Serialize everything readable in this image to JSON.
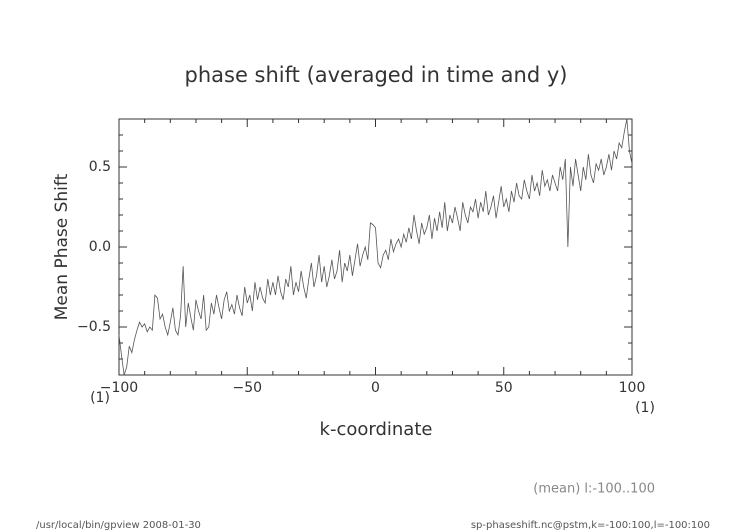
{
  "chart_data": {
    "type": "line",
    "title": "phase shift (averaged in time and y)",
    "x_label": "k-coordinate",
    "y_label": "Mean Phase Shift",
    "x_unit": "(1)",
    "y_unit": "(1)",
    "annotation": "(mean) l:-100..100",
    "footer_left": "/usr/local/bin/gpview  2008-01-30",
    "footer_right": "sp-phaseshift.nc@pstm,k=-100:100,l=-100:100",
    "xlim": [
      -100,
      100
    ],
    "ylim": [
      -0.8,
      0.8
    ],
    "xticks": [
      {
        "value": -100,
        "label": "−100"
      },
      {
        "value": -50,
        "label": "−50"
      },
      0,
      50,
      100
    ],
    "yticks": [
      {
        "value": -0.5,
        "label": "−0.5"
      },
      {
        "value": 0,
        "label": "0.0"
      },
      0.5
    ],
    "x_minor_ticks": [
      -90,
      -80,
      -70,
      -60,
      -40,
      -30,
      -20,
      -10,
      10,
      20,
      30,
      40,
      60,
      70,
      80,
      90
    ],
    "y_minor_ticks": [
      -0.7,
      -0.6,
      -0.4,
      -0.3,
      -0.2,
      -0.1,
      0.1,
      0.2,
      0.3,
      0.4,
      0.6,
      0.7
    ],
    "x": [
      -100,
      -99,
      -98,
      -97,
      -96,
      -95,
      -94,
      -93,
      -92,
      -91,
      -90,
      -89,
      -88,
      -87,
      -86,
      -85,
      -84,
      -83,
      -82,
      -81,
      -80,
      -79,
      -78,
      -77,
      -76,
      -75,
      -74,
      -73,
      -72,
      -71,
      -70,
      -69,
      -68,
      -67,
      -66,
      -65,
      -64,
      -63,
      -62,
      -61,
      -60,
      -59,
      -58,
      -57,
      -56,
      -55,
      -54,
      -53,
      -52,
      -51,
      -50,
      -49,
      -48,
      -47,
      -46,
      -45,
      -44,
      -43,
      -42,
      -41,
      -40,
      -39,
      -38,
      -37,
      -36,
      -35,
      -34,
      -33,
      -32,
      -31,
      -30,
      -29,
      -28,
      -27,
      -26,
      -25,
      -24,
      -23,
      -22,
      -21,
      -20,
      -19,
      -18,
      -17,
      -16,
      -15,
      -14,
      -13,
      -12,
      -11,
      -10,
      -9,
      -8,
      -7,
      -6,
      -5,
      -4,
      -3,
      -2,
      -1,
      0,
      1,
      2,
      3,
      4,
      5,
      6,
      7,
      8,
      9,
      10,
      11,
      12,
      13,
      14,
      15,
      16,
      17,
      18,
      19,
      20,
      21,
      22,
      23,
      24,
      25,
      26,
      27,
      28,
      29,
      30,
      31,
      32,
      33,
      34,
      35,
      36,
      37,
      38,
      39,
      40,
      41,
      42,
      43,
      44,
      45,
      46,
      47,
      48,
      49,
      50,
      51,
      52,
      53,
      54,
      55,
      56,
      57,
      58,
      59,
      60,
      61,
      62,
      63,
      64,
      65,
      66,
      67,
      68,
      69,
      70,
      71,
      72,
      73,
      74,
      75,
      76,
      77,
      78,
      79,
      80,
      81,
      82,
      83,
      84,
      85,
      86,
      87,
      88,
      89,
      90,
      91,
      92,
      93,
      94,
      95,
      96,
      97,
      98,
      99,
      100
    ],
    "series": [
      {
        "color": "#555555",
        "values": [
          -0.55,
          -0.68,
          -0.8,
          -0.75,
          -0.62,
          -0.66,
          -0.58,
          -0.52,
          -0.47,
          -0.5,
          -0.48,
          -0.53,
          -0.5,
          -0.52,
          -0.3,
          -0.32,
          -0.45,
          -0.42,
          -0.5,
          -0.55,
          -0.47,
          -0.38,
          -0.52,
          -0.55,
          -0.43,
          -0.12,
          -0.5,
          -0.35,
          -0.44,
          -0.52,
          -0.33,
          -0.4,
          -0.45,
          -0.3,
          -0.52,
          -0.5,
          -0.35,
          -0.42,
          -0.3,
          -0.38,
          -0.45,
          -0.33,
          -0.28,
          -0.4,
          -0.36,
          -0.42,
          -0.3,
          -0.38,
          -0.43,
          -0.25,
          -0.35,
          -0.3,
          -0.4,
          -0.22,
          -0.33,
          -0.25,
          -0.32,
          -0.35,
          -0.2,
          -0.3,
          -0.22,
          -0.3,
          -0.18,
          -0.28,
          -0.33,
          -0.2,
          -0.25,
          -0.12,
          -0.3,
          -0.22,
          -0.28,
          -0.15,
          -0.25,
          -0.32,
          -0.2,
          -0.1,
          -0.25,
          -0.18,
          -0.05,
          -0.22,
          -0.12,
          -0.25,
          -0.18,
          -0.08,
          -0.2,
          -0.15,
          -0.02,
          -0.22,
          -0.1,
          -0.15,
          -0.05,
          -0.18,
          -0.08,
          0.02,
          -0.12,
          -0.05,
          0.0,
          -0.08,
          0.15,
          0.14,
          0.12,
          -0.1,
          -0.13,
          -0.05,
          -0.02,
          -0.08,
          0.05,
          -0.03,
          0.02,
          0.05,
          0.0,
          0.08,
          0.03,
          0.12,
          0.05,
          0.2,
          0.1,
          0.02,
          0.15,
          0.08,
          0.12,
          0.2,
          0.05,
          0.18,
          0.1,
          0.22,
          0.12,
          0.28,
          0.1,
          0.2,
          0.15,
          0.25,
          0.18,
          0.1,
          0.28,
          0.2,
          0.15,
          0.25,
          0.22,
          0.3,
          0.18,
          0.28,
          0.22,
          0.35,
          0.2,
          0.25,
          0.32,
          0.18,
          0.28,
          0.38,
          0.25,
          0.3,
          0.22,
          0.35,
          0.28,
          0.4,
          0.32,
          0.3,
          0.42,
          0.35,
          0.3,
          0.45,
          0.35,
          0.4,
          0.32,
          0.48,
          0.38,
          0.42,
          0.35,
          0.45,
          0.4,
          0.35,
          0.5,
          0.42,
          0.55,
          0.0,
          0.5,
          0.38,
          0.55,
          0.45,
          0.35,
          0.5,
          0.42,
          0.58,
          0.45,
          0.4,
          0.52,
          0.48,
          0.55,
          0.45,
          0.5,
          0.58,
          0.48,
          0.6,
          0.55,
          0.65,
          0.62,
          0.72,
          0.8,
          0.6,
          0.52
        ]
      }
    ]
  }
}
